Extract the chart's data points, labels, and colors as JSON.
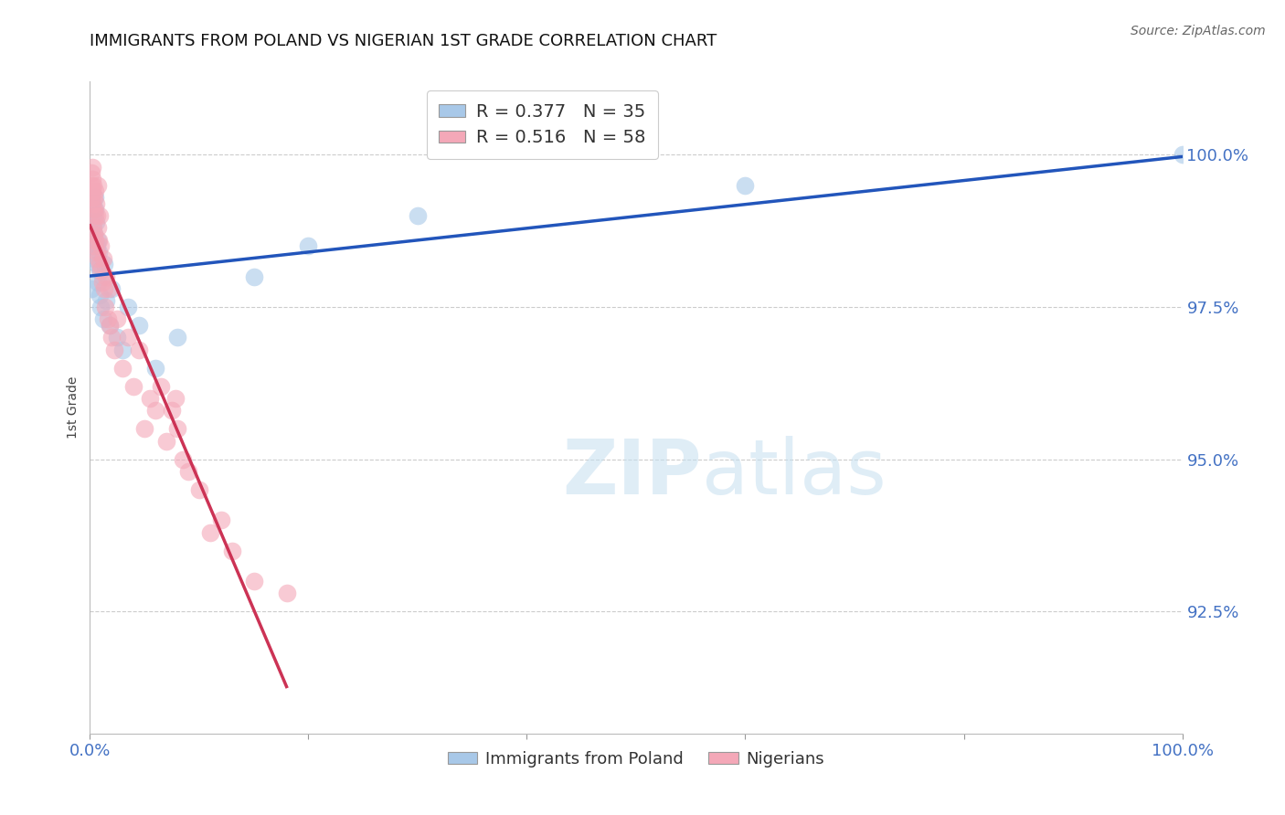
{
  "title": "IMMIGRANTS FROM POLAND VS NIGERIAN 1ST GRADE CORRELATION CHART",
  "source": "Source: ZipAtlas.com",
  "ylabel": "1st Grade",
  "xlim": [
    0.0,
    100.0
  ],
  "ylim": [
    90.5,
    101.2
  ],
  "yticks": [
    92.5,
    95.0,
    97.5,
    100.0
  ],
  "ytick_labels": [
    "92.5%",
    "95.0%",
    "97.5%",
    "100.0%"
  ],
  "blue_R": 0.377,
  "blue_N": 35,
  "pink_R": 0.516,
  "pink_N": 58,
  "blue_color": "#a8c8e8",
  "pink_color": "#f4a8b8",
  "blue_line_color": "#2255bb",
  "pink_line_color": "#cc3355",
  "legend_label_blue": "Immigrants from Poland",
  "legend_label_pink": "Nigerians",
  "blue_x": [
    0.1,
    0.15,
    0.2,
    0.25,
    0.3,
    0.35,
    0.4,
    0.45,
    0.5,
    0.55,
    0.6,
    0.65,
    0.7,
    0.75,
    0.8,
    0.85,
    0.9,
    1.0,
    1.1,
    1.2,
    1.3,
    1.5,
    1.8,
    2.0,
    2.5,
    3.0,
    3.5,
    4.5,
    6.0,
    8.0,
    15.0,
    20.0,
    30.0,
    60.0,
    100.0
  ],
  "blue_y": [
    97.8,
    98.5,
    98.8,
    99.2,
    99.0,
    98.7,
    98.3,
    99.1,
    99.3,
    98.9,
    98.5,
    98.2,
    98.6,
    97.9,
    98.4,
    97.7,
    98.1,
    97.5,
    98.0,
    97.3,
    98.2,
    97.6,
    97.2,
    97.8,
    97.0,
    96.8,
    97.5,
    97.2,
    96.5,
    97.0,
    98.0,
    98.5,
    99.0,
    99.5,
    100.0
  ],
  "pink_x": [
    0.1,
    0.15,
    0.15,
    0.2,
    0.2,
    0.25,
    0.25,
    0.3,
    0.3,
    0.35,
    0.35,
    0.4,
    0.4,
    0.45,
    0.5,
    0.5,
    0.55,
    0.6,
    0.65,
    0.7,
    0.7,
    0.75,
    0.8,
    0.85,
    0.9,
    0.95,
    1.0,
    1.1,
    1.2,
    1.3,
    1.4,
    1.5,
    1.6,
    1.7,
    1.8,
    2.0,
    2.2,
    2.5,
    3.0,
    3.5,
    4.0,
    4.5,
    5.0,
    5.5,
    6.0,
    6.5,
    7.0,
    7.5,
    7.8,
    8.0,
    8.5,
    9.0,
    10.0,
    11.0,
    12.0,
    13.0,
    15.0,
    18.0
  ],
  "pink_y": [
    99.5,
    99.7,
    99.3,
    99.8,
    99.4,
    99.6,
    99.2,
    99.5,
    98.8,
    99.3,
    98.5,
    99.1,
    98.7,
    99.4,
    99.0,
    98.6,
    99.2,
    98.4,
    99.0,
    98.3,
    99.5,
    98.8,
    98.6,
    99.0,
    98.2,
    98.5,
    98.1,
    97.9,
    98.3,
    97.8,
    97.5,
    98.0,
    97.3,
    97.8,
    97.2,
    97.0,
    96.8,
    97.3,
    96.5,
    97.0,
    96.2,
    96.8,
    95.5,
    96.0,
    95.8,
    96.2,
    95.3,
    95.8,
    96.0,
    95.5,
    95.0,
    94.8,
    94.5,
    93.8,
    94.0,
    93.5,
    93.0,
    92.8
  ]
}
